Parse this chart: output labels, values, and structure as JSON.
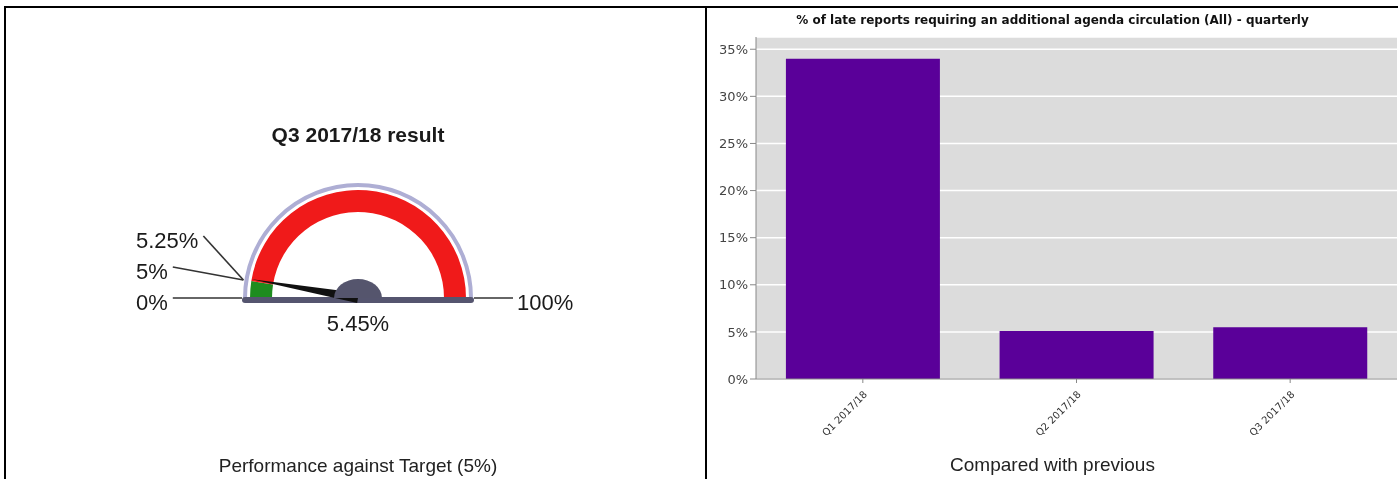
{
  "chart_data": [
    {
      "type": "donut",
      "title": "Q3 2017/18 result",
      "categories": [
        null,
        null
      ],
      "values": [
        5,
        95
      ],
      "colors": [
        "#1e8c1e",
        "#f01a1a"
      ],
      "needle": null,
      "annotations": [
        "0%",
        "5%",
        "5.25%",
        "100%",
        "5.45%",
        "Performance against Target (5%)"
      ]
    },
    {
      "type": "bar",
      "title": "% of late reports requiring an additional agenda circulation (All) - quarterly",
      "categories": [
        "Q1 2017/18",
        "Q2 2017/18",
        "Q3 2017/18"
      ],
      "values": [
        34,
        5.1,
        5.5
      ],
      "color": "#5a0099",
      "ylim": [
        0,
        36.3
      ],
      "yticks": [
        {
          "value": 0,
          "label": "0%"
        },
        {
          "value": 5,
          "label": "5%"
        },
        {
          "value": 10,
          "label": "10%"
        },
        {
          "value": 15,
          "label": "15%"
        },
        {
          "value": 20,
          "label": "20%"
        },
        {
          "value": 25,
          "label": "25%"
        },
        {
          "value": 30,
          "label": "30%"
        },
        {
          "value": 35,
          "label": "35%"
        }
      ],
      "grid": "y",
      "annotations": [
        "Compared with previous"
      ]
    }
  ]
}
